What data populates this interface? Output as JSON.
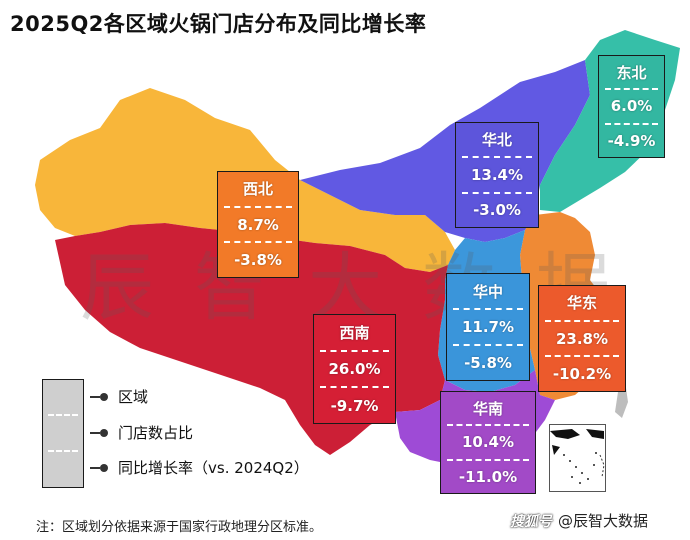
{
  "title": "2025Q2各区域火锅门店分布及同比增长率",
  "watermark": "辰智大数据",
  "regions": [
    {
      "name": "东北",
      "share": "6.0%",
      "growth": "-4.9%",
      "color": "#36BFA8",
      "box_color": "#33B7A1"
    },
    {
      "name": "华北",
      "share": "13.4%",
      "growth": "-3.0%",
      "color": "#6159E3",
      "box_color": "#5D55DB"
    },
    {
      "name": "西北",
      "share": "8.7%",
      "growth": "-3.8%",
      "color": "#F8B63A",
      "box_color": "#F27A28"
    },
    {
      "name": "华中",
      "share": "11.7%",
      "growth": "-5.8%",
      "color": "#3C97DB",
      "box_color": "#3A95DA"
    },
    {
      "name": "华东",
      "share": "23.8%",
      "growth": "-10.2%",
      "color": "#EF8A35",
      "box_color": "#EC5A2C"
    },
    {
      "name": "西南",
      "share": "26.0%",
      "growth": "-9.7%",
      "color": "#CC1F36",
      "box_color": "#D51F35"
    },
    {
      "name": "华南",
      "share": "10.4%",
      "growth": "-11.0%",
      "color": "#9E4BD6",
      "box_color": "#A24AC7"
    }
  ],
  "legend": {
    "items": [
      "区域",
      "门店数占比",
      "同比增长率（vs. 2024Q2）"
    ],
    "box_color": "#CFCFCF"
  },
  "footnote": "注：区域划分依据来源于国家行政地理分区标准。",
  "brand": {
    "icon_text": "搜狐号",
    "handle": "@辰智大数据"
  }
}
